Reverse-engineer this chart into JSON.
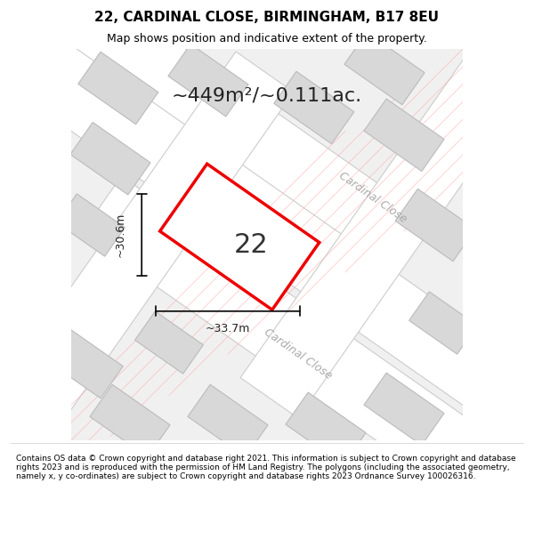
{
  "title_line1": "22, CARDINAL CLOSE, BIRMINGHAM, B17 8EU",
  "title_line2": "Map shows position and indicative extent of the property.",
  "area_label": "~449m²/~0.111ac.",
  "property_number": "22",
  "dim_width": "~33.7m",
  "dim_height": "~30.6m",
  "street_name1": "Cardinal Close",
  "street_name2": "Cardinal Close",
  "footer": "Contains OS data © Crown copyright and database right 2021. This information is subject to Crown copyright and database rights 2023 and is reproduced with the permission of HM Land Registry. The polygons (including the associated geometry, namely x, y co-ordinates) are subject to Crown copyright and database rights 2023 Ordnance Survey 100026316.",
  "bg_color": "#e8e8e8",
  "map_bg": "#f0f0f0",
  "road_color": "#ffffff",
  "road_stroke": "#cccccc",
  "building_fill": "#d8d8d8",
  "building_stroke": "#bbbbbb",
  "property_fill": "#ffffff",
  "property_stroke": "#ee0000",
  "dim_line_color": "#000000",
  "street_label_color": "#aaaaaa",
  "title_color": "#000000",
  "footer_color": "#000000",
  "pink_line_color": "#ffaaaa"
}
